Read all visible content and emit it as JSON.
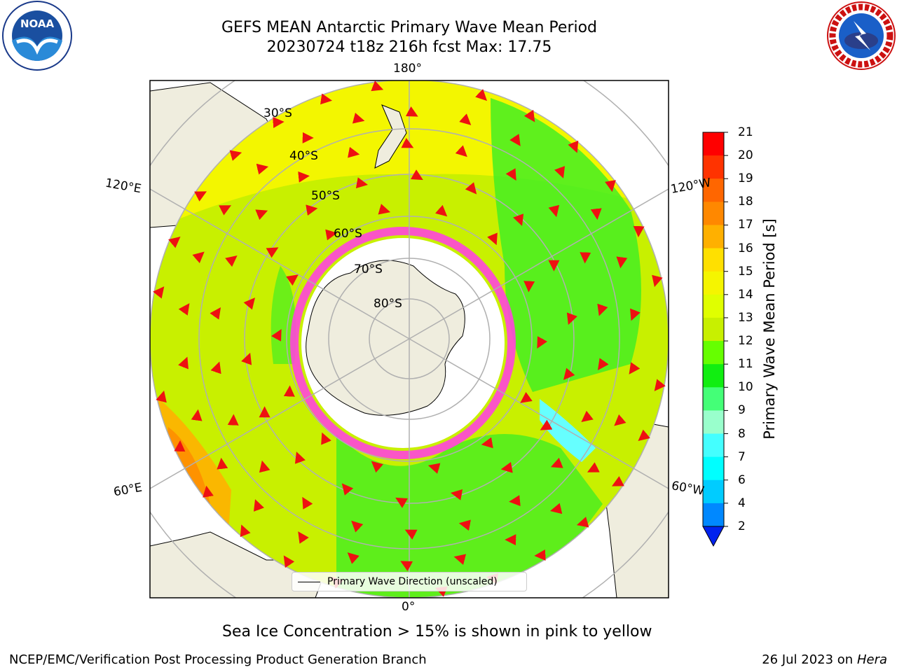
{
  "header": {
    "title_line1": "GEFS MEAN Antarctic Primary Wave Mean Period",
    "title_line2": "20230724 t18z 216h fcst   Max: 17.75"
  },
  "logos": {
    "left": {
      "icon": "noaa-logo",
      "text": "NOAA"
    },
    "right": {
      "icon": "nws-logo",
      "text": "NATIONAL WEATHER SERVICE"
    }
  },
  "map": {
    "projection": "south-polar-stereographic",
    "longitude_labels": {
      "top": "180°",
      "bottom": "0°",
      "upper_left": "120°E",
      "lower_left": "60°E",
      "upper_right": "120°W",
      "lower_right": "60°W"
    },
    "latitude_labels": [
      "30°S",
      "40°S",
      "50°S",
      "60°S",
      "70°S",
      "80°S"
    ],
    "legend_label": "Primary Wave Direction (unscaled)",
    "colors": {
      "land": "#efedde",
      "ocean_green": "#44ee22",
      "ocean_yellowgreen": "#c8f000",
      "ocean_yellow": "#f5f500",
      "ocean_orange": "#ffb000",
      "ocean_cyan": "#66ffff",
      "sea_ice_edge": "#ff44dd",
      "arrow": "#ee1111",
      "grid": "#b0b0b0"
    }
  },
  "colorbar": {
    "title": "Primary Wave Mean Period [s]",
    "ticks": [
      "21",
      "20",
      "19",
      "18",
      "17",
      "16",
      "15",
      "14",
      "13",
      "12",
      "11",
      "10",
      "9",
      "8",
      "7",
      "6",
      "4",
      "2"
    ],
    "colors": [
      "#ff0000",
      "#ff3300",
      "#ff6600",
      "#ff8800",
      "#ffb000",
      "#ffe000",
      "#f5f500",
      "#e0ff00",
      "#c8f000",
      "#66ff00",
      "#11ee11",
      "#44ff77",
      "#99ffcc",
      "#44ffff",
      "#00ffff",
      "#00ccff",
      "#0088ff",
      "#0044ff"
    ],
    "extend_color": "#0022ee"
  },
  "notes": {
    "sea_ice": "Sea Ice Concentration > 15% is shown in pink to yellow"
  },
  "footer": {
    "left": "NCEP/EMC/Verification Post Processing Product Generation Branch",
    "right_prefix": "26 Jul 2023 on ",
    "right_machine": "Hera"
  }
}
